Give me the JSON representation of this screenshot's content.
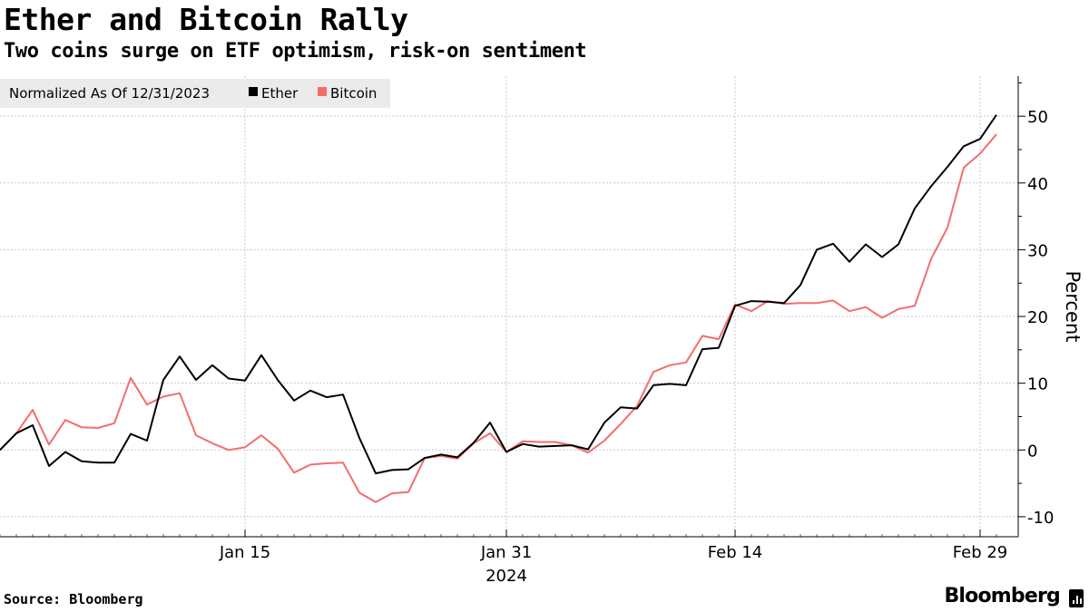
{
  "header": {
    "title": "Ether and Bitcoin Rally",
    "subtitle": "Two coins surge on ETF optimism, risk-on sentiment"
  },
  "footer": {
    "source": "Source: Bloomberg",
    "brand": "Bloomberg"
  },
  "chart_data": {
    "type": "line",
    "title": "Ether and Bitcoin Rally",
    "subtitle": "Two coins surge on ETF optimism, risk-on sentiment",
    "note": "Normalized As Of 12/31/2023",
    "ylabel": "Percent",
    "xlabel": "",
    "ylim": [
      -13,
      56
    ],
    "yticks": [
      -10,
      0,
      10,
      20,
      30,
      40,
      50
    ],
    "ytick_labels": [
      "-10",
      "0",
      "10",
      "20",
      "30",
      "40",
      "50"
    ],
    "x_range": [
      "2023-12-31",
      "2024-03-01"
    ],
    "x_tick_labels": [
      {
        "date": "2024-01-15",
        "label": "Jan 15"
      },
      {
        "date": "2024-01-31",
        "label": "Jan 31",
        "sublabel": "2024"
      },
      {
        "date": "2024-02-14",
        "label": "Feb 14"
      },
      {
        "date": "2024-02-29",
        "label": "Feb 29"
      }
    ],
    "grid": true,
    "legend_position": "top-left",
    "x": [
      "2023-12-31",
      "2024-01-01",
      "2024-01-02",
      "2024-01-03",
      "2024-01-04",
      "2024-01-05",
      "2024-01-06",
      "2024-01-07",
      "2024-01-08",
      "2024-01-09",
      "2024-01-10",
      "2024-01-11",
      "2024-01-12",
      "2024-01-13",
      "2024-01-14",
      "2024-01-15",
      "2024-01-16",
      "2024-01-17",
      "2024-01-18",
      "2024-01-19",
      "2024-01-20",
      "2024-01-21",
      "2024-01-22",
      "2024-01-23",
      "2024-01-24",
      "2024-01-25",
      "2024-01-26",
      "2024-01-27",
      "2024-01-28",
      "2024-01-29",
      "2024-01-30",
      "2024-01-31",
      "2024-02-01",
      "2024-02-02",
      "2024-02-03",
      "2024-02-04",
      "2024-02-05",
      "2024-02-06",
      "2024-02-07",
      "2024-02-08",
      "2024-02-09",
      "2024-02-10",
      "2024-02-11",
      "2024-02-12",
      "2024-02-13",
      "2024-02-14",
      "2024-02-15",
      "2024-02-16",
      "2024-02-17",
      "2024-02-18",
      "2024-02-19",
      "2024-02-20",
      "2024-02-21",
      "2024-02-22",
      "2024-02-23",
      "2024-02-24",
      "2024-02-25",
      "2024-02-26",
      "2024-02-27",
      "2024-02-28",
      "2024-02-29",
      "2024-03-01"
    ],
    "series": [
      {
        "name": "Ether",
        "color": "#000000",
        "values": [
          0,
          2.5,
          3.7,
          -2.4,
          -0.3,
          -1.7,
          -1.9,
          -1.9,
          2.4,
          1.4,
          10.5,
          14.0,
          10.5,
          12.7,
          10.7,
          10.4,
          14.2,
          10.5,
          7.4,
          8.9,
          7.9,
          8.3,
          1.8,
          -3.5,
          -3.0,
          -2.9,
          -1.2,
          -0.7,
          -1.1,
          1.1,
          4.1,
          -0.3,
          0.9,
          0.5,
          0.6,
          0.7,
          0.1,
          4.1,
          6.4,
          6.2,
          9.7,
          9.9,
          9.7,
          15.1,
          15.3,
          21.6,
          22.3,
          22.2,
          22.0,
          24.7,
          30.0,
          30.9,
          28.2,
          30.8,
          28.9,
          30.8,
          36.2,
          39.5,
          42.4,
          45.5,
          46.6,
          50.2
        ]
      },
      {
        "name": "Bitcoin",
        "color": "#f36d6d",
        "values": [
          0,
          2.5,
          6.0,
          0.8,
          4.5,
          3.4,
          3.3,
          4.0,
          10.8,
          6.8,
          8.0,
          8.5,
          2.2,
          1.0,
          0.0,
          0.4,
          2.2,
          0.2,
          -3.4,
          -2.2,
          -2.0,
          -1.9,
          -6.4,
          -7.8,
          -6.5,
          -6.3,
          -1.2,
          -0.9,
          -1.3,
          1.0,
          2.5,
          -0.3,
          1.3,
          1.2,
          1.2,
          0.7,
          -0.4,
          1.4,
          3.9,
          6.6,
          11.7,
          12.7,
          13.1,
          17.1,
          16.6,
          21.8,
          20.8,
          22.3,
          21.9,
          22.0,
          22.0,
          22.4,
          20.8,
          21.4,
          19.8,
          21.1,
          21.6,
          28.6,
          33.3,
          42.3,
          44.4,
          47.3
        ]
      }
    ]
  }
}
